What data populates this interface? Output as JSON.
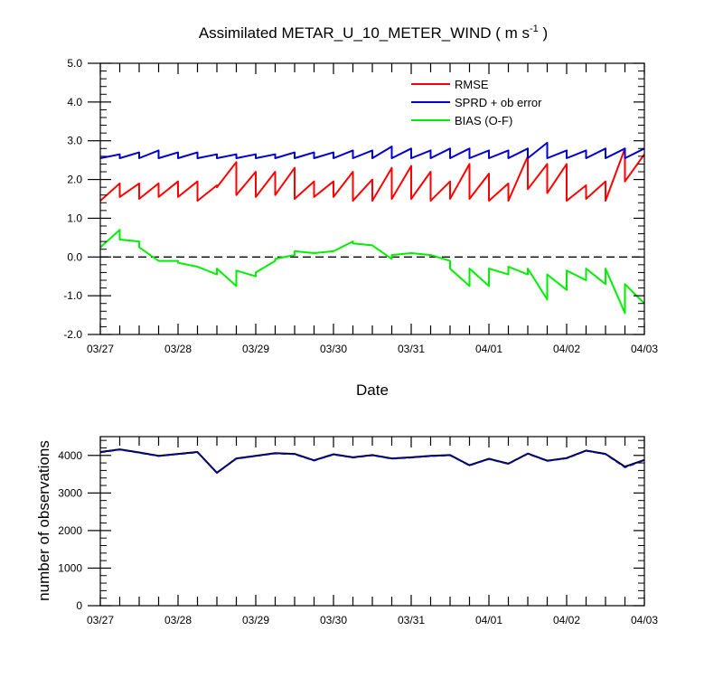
{
  "title": {
    "main": "Assimilated METAR_U_10_METER_WIND ( m s",
    "sup": "-1",
    "close": " )"
  },
  "colors": {
    "rmse": "#ff0000",
    "sprd": "#0000cc",
    "bias": "#00ee00",
    "zero_line": "#000000",
    "obs_used": "#000000",
    "obs_possible": "#0000cc"
  },
  "chart_data": [
    {
      "type": "line",
      "xlabel": "Date",
      "ylabel": "",
      "xlim": [
        0,
        7
      ],
      "ylim": [
        -2.0,
        5.0
      ],
      "x_ticks": [
        0,
        1,
        2,
        3,
        4,
        5,
        6,
        7
      ],
      "x_tick_labels": [
        "03/27",
        "03/28",
        "03/29",
        "03/30",
        "03/31",
        "04/01",
        "04/02",
        "04/03"
      ],
      "y_ticks": [
        -2,
        -1,
        0,
        1,
        2,
        3,
        4,
        5
      ],
      "y_tick_labels": [
        "-2.0",
        "-1.0",
        "0.0",
        "1.0",
        "2.0",
        "3.0",
        "4.0",
        "5.0"
      ],
      "reference_line": {
        "y": 0,
        "style": "dashed"
      },
      "legend": {
        "placement": "top-right"
      },
      "series": [
        {
          "name": "RMSE",
          "x": [
            0,
            0.25,
            0.25,
            0.5,
            0.5,
            0.75,
            0.75,
            1,
            1,
            1.25,
            1.25,
            1.5,
            1.5,
            1.75,
            1.75,
            2,
            2,
            2.25,
            2.25,
            2.5,
            2.5,
            2.75,
            2.75,
            3,
            3,
            3.25,
            3.25,
            3.5,
            3.5,
            3.75,
            3.75,
            4,
            4,
            4.25,
            4.25,
            4.5,
            4.5,
            4.75,
            4.75,
            5,
            5,
            5.25,
            5.25,
            5.5,
            5.5,
            5.75,
            5.75,
            6,
            6,
            6.25,
            6.25,
            6.5,
            6.5,
            6.75,
            6.75,
            7
          ],
          "values": [
            1.45,
            1.9,
            1.55,
            1.9,
            1.5,
            1.9,
            1.55,
            1.95,
            1.55,
            1.95,
            1.45,
            1.85,
            1.8,
            2.45,
            1.6,
            2.2,
            1.55,
            2.2,
            1.6,
            2.3,
            1.5,
            1.95,
            1.55,
            1.95,
            1.55,
            2.2,
            1.45,
            2.0,
            1.45,
            2.3,
            1.5,
            2.35,
            1.5,
            2.2,
            1.45,
            1.95,
            1.5,
            2.4,
            1.5,
            2.15,
            1.45,
            1.9,
            1.45,
            2.6,
            1.75,
            2.4,
            1.65,
            2.4,
            1.45,
            1.85,
            1.5,
            1.95,
            1.45,
            2.8,
            1.95,
            2.65
          ]
        },
        {
          "name": "SPRD + ob error",
          "x": [
            0,
            0.25,
            0.25,
            0.5,
            0.5,
            0.75,
            0.75,
            1,
            1,
            1.25,
            1.25,
            1.5,
            1.5,
            1.75,
            1.75,
            2,
            2,
            2.25,
            2.25,
            2.5,
            2.5,
            2.75,
            2.75,
            3,
            3,
            3.25,
            3.25,
            3.5,
            3.5,
            3.75,
            3.75,
            4,
            4,
            4.25,
            4.25,
            4.5,
            4.5,
            4.75,
            4.75,
            5,
            5,
            5.25,
            5.25,
            5.5,
            5.5,
            5.75,
            5.75,
            6,
            6,
            6.25,
            6.25,
            6.5,
            6.5,
            6.75,
            6.75,
            7
          ],
          "values": [
            2.55,
            2.65,
            2.55,
            2.7,
            2.55,
            2.75,
            2.55,
            2.7,
            2.55,
            2.7,
            2.55,
            2.65,
            2.55,
            2.65,
            2.55,
            2.65,
            2.55,
            2.65,
            2.55,
            2.7,
            2.55,
            2.7,
            2.55,
            2.7,
            2.55,
            2.75,
            2.55,
            2.75,
            2.55,
            2.85,
            2.55,
            2.8,
            2.55,
            2.75,
            2.55,
            2.8,
            2.55,
            2.8,
            2.55,
            2.75,
            2.55,
            2.75,
            2.55,
            2.8,
            2.55,
            2.95,
            2.55,
            2.75,
            2.55,
            2.75,
            2.55,
            2.8,
            2.55,
            2.8,
            2.55,
            2.8
          ]
        },
        {
          "name": "BIAS (O-F)",
          "x": [
            0,
            0.25,
            0.25,
            0.5,
            0.5,
            0.75,
            0.75,
            1,
            1,
            1.25,
            1.25,
            1.5,
            1.5,
            1.75,
            1.75,
            2,
            2,
            2.25,
            2.25,
            2.5,
            2.5,
            2.75,
            2.75,
            3,
            3,
            3.25,
            3.25,
            3.5,
            3.5,
            3.75,
            3.75,
            4,
            4,
            4.25,
            4.25,
            4.5,
            4.5,
            4.75,
            4.75,
            5,
            5,
            5.25,
            5.25,
            5.5,
            5.5,
            5.75,
            5.75,
            6,
            6,
            6.25,
            6.25,
            6.5,
            6.5,
            6.75,
            6.75,
            7
          ],
          "values": [
            0.25,
            0.7,
            0.45,
            0.4,
            0.25,
            -0.1,
            -0.1,
            -0.1,
            -0.15,
            -0.25,
            -0.25,
            -0.45,
            -0.3,
            -0.75,
            -0.35,
            -0.5,
            -0.4,
            -0.1,
            -0.05,
            0.05,
            0.15,
            0.1,
            0.1,
            0.15,
            0.15,
            0.4,
            0.35,
            0.3,
            0.3,
            -0.05,
            0.05,
            0.1,
            0.1,
            0.05,
            0.05,
            -0.1,
            -0.3,
            -0.75,
            -0.3,
            -0.75,
            -0.3,
            -0.45,
            -0.25,
            -0.45,
            -0.3,
            -1.1,
            -0.45,
            -0.85,
            -0.35,
            -0.6,
            -0.3,
            -0.7,
            -0.3,
            -1.45,
            -0.7,
            -1.2
          ]
        }
      ]
    },
    {
      "type": "line",
      "xlabel": "",
      "ylabel": "number of observations",
      "xlim": [
        0,
        7
      ],
      "ylim": [
        0,
        4500
      ],
      "x_ticks": [
        0,
        1,
        2,
        3,
        4,
        5,
        6,
        7
      ],
      "x_tick_labels": [
        "03/27",
        "03/28",
        "03/29",
        "03/30",
        "03/31",
        "04/01",
        "04/02",
        "04/03"
      ],
      "y_ticks": [
        0,
        1000,
        2000,
        3000,
        4000
      ],
      "y_tick_labels": [
        "0",
        "1000",
        "2000",
        "3000",
        "4000"
      ],
      "series": [
        {
          "x": [
            0,
            0.25,
            0.5,
            0.75,
            1,
            1.25,
            1.5,
            1.75,
            2,
            2.25,
            2.5,
            2.75,
            3,
            3.25,
            3.5,
            3.75,
            4,
            4.25,
            4.5,
            4.75,
            5,
            5.25,
            5.5,
            5.75,
            6,
            6.25,
            6.5,
            6.75,
            7
          ],
          "values": [
            4090,
            4160,
            4080,
            3990,
            4040,
            4090,
            3540,
            3920,
            3990,
            4060,
            4040,
            3870,
            4030,
            3950,
            4010,
            3920,
            3950,
            3990,
            4010,
            3740,
            3910,
            3780,
            4050,
            3860,
            3930,
            4130,
            4040,
            3700,
            3880
          ]
        },
        {
          "x": [
            0,
            0.25,
            0.5,
            0.75,
            1,
            1.25,
            1.5,
            1.75,
            2,
            2.25,
            2.5,
            2.75,
            3,
            3.25,
            3.5,
            3.75,
            4,
            4.25,
            4.5,
            4.75,
            5,
            5.25,
            5.5,
            5.75,
            6,
            6.25,
            6.5,
            6.75,
            7
          ],
          "values": [
            4080,
            4150,
            4070,
            3980,
            4030,
            4080,
            3530,
            3910,
            3980,
            4050,
            4030,
            3860,
            4020,
            3940,
            4000,
            3910,
            3940,
            3980,
            4000,
            3730,
            3900,
            3770,
            4040,
            3850,
            3920,
            4120,
            4030,
            3680,
            3870
          ],
          "style": "dashed"
        }
      ]
    }
  ]
}
